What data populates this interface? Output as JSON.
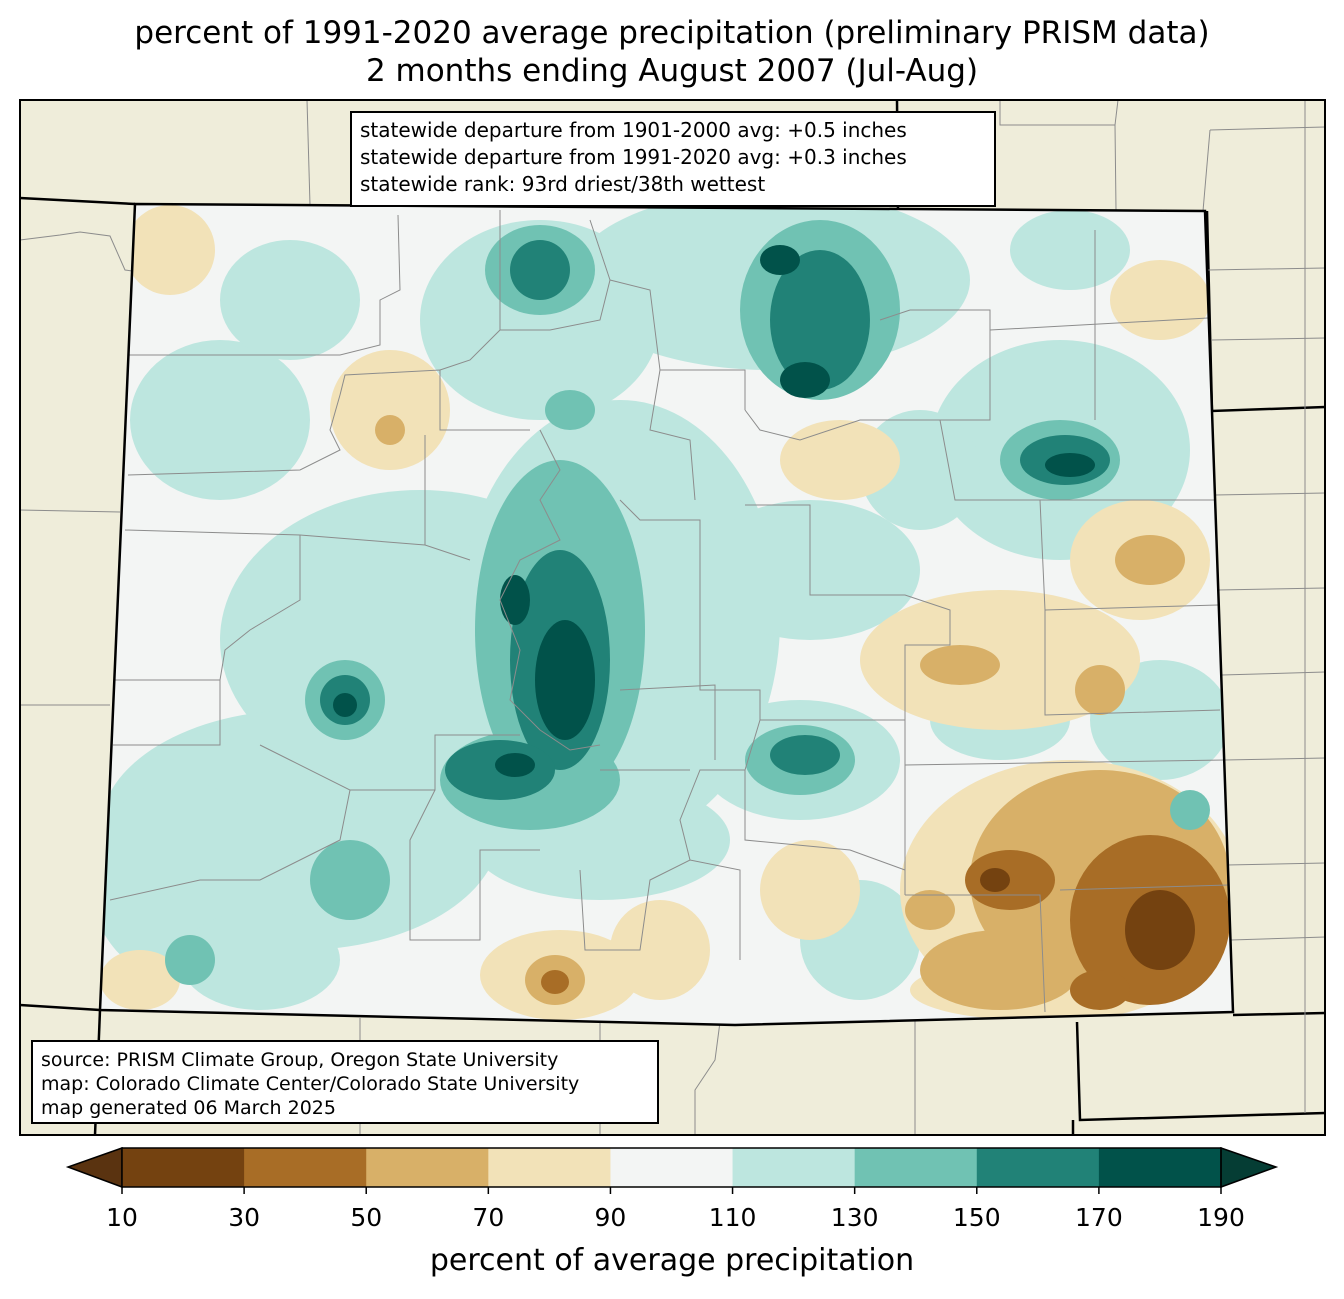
{
  "title": {
    "line1": "percent of 1991-2020 average precipitation (preliminary PRISM data)",
    "line2": "2 months ending August 2007 (Jul-Aug)"
  },
  "stats": {
    "line1": "statewide departure from 1901-2000 avg: +0.5 inches",
    "line2": "statewide departure from 1991-2020 avg: +0.3 inches",
    "line3": "statewide rank: 93rd driest/38th wettest"
  },
  "source": {
    "line1": "source: PRISM Climate Group, Oregon State University",
    "line2": "map: Colorado Climate Center/Colorado State University",
    "line3": "map generated 06 March 2025"
  },
  "colorbar": {
    "label": "percent of average precipitation",
    "ticks": [
      "10",
      "30",
      "50",
      "70",
      "90",
      "110",
      "130",
      "150",
      "170",
      "190"
    ],
    "colors": [
      "#5a3310",
      "#744210",
      "#a86d26",
      "#d8b068",
      "#f2e2b8",
      "#f3f5f4",
      "#bde6df",
      "#70c2b3",
      "#218277",
      "#01524a",
      "#053d34"
    ]
  },
  "colors": {
    "background_land": "#efedda",
    "state_fill": "#f3f5f4"
  }
}
